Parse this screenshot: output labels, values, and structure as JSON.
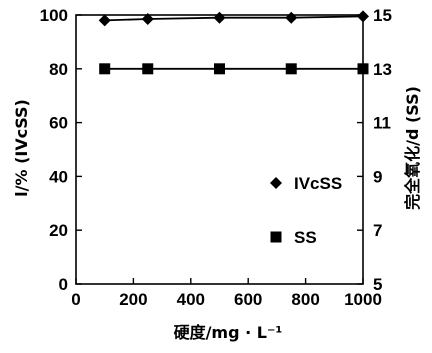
{
  "chart_data": {
    "type": "line",
    "xlabel": "硬度/mg · L⁻¹",
    "ylabel_left": "l/% (IVcSS)",
    "ylabel_right": "完全氧化/d (SS)",
    "xlim": [
      0,
      1000
    ],
    "ylim_left": [
      0,
      100
    ],
    "ylim_right": [
      5,
      15
    ],
    "x_ticks": [
      "0",
      "200",
      "400",
      "600",
      "800",
      "1000"
    ],
    "y_ticks_left": [
      "0",
      "20",
      "40",
      "60",
      "80",
      "100"
    ],
    "y_ticks_right": [
      "5",
      "7",
      "9",
      "11",
      "13",
      "15"
    ],
    "grid": false,
    "legend_position": "center-right",
    "series": [
      {
        "name": "IVcSS",
        "axis": "left",
        "marker": "diamond",
        "x": [
          100,
          250,
          500,
          750,
          1000
        ],
        "values": [
          98,
          98.5,
          99,
          99,
          99.5
        ]
      },
      {
        "name": "SS",
        "axis": "right",
        "marker": "square",
        "x": [
          100,
          250,
          500,
          750,
          1000
        ],
        "values": [
          13,
          13,
          13,
          13,
          13
        ]
      }
    ],
    "colors": {
      "line": "#000000",
      "marker": "#000000"
    }
  }
}
